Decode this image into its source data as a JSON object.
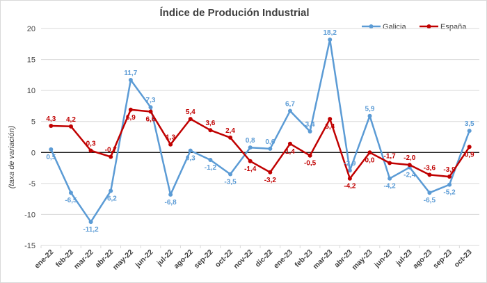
{
  "chart_data": {
    "type": "line",
    "title": "Índice de Produción Industrial",
    "xlabel": "",
    "ylabel": "(taxa de variación)",
    "ylim": [
      -15,
      20
    ],
    "yticks": [
      -15,
      -10,
      -5,
      0,
      5,
      10,
      15,
      20
    ],
    "grid": "horizontal",
    "legend_position": "top-right",
    "categories": [
      "ene-22",
      "feb-22",
      "mar-22",
      "abr-22",
      "may-22",
      "jun-22",
      "jul-22",
      "ago-22",
      "sep-22",
      "oct-22",
      "nov-22",
      "dic-22",
      "ene-23",
      "feb-23",
      "mar-23",
      "abr-23",
      "may-23",
      "jun-23",
      "jul-23",
      "ago-23",
      "sep-23",
      "oct-23"
    ],
    "series": [
      {
        "name": "Galicia",
        "color": "#5b9bd5",
        "values": [
          0.5,
          -6.5,
          -11.2,
          -6.2,
          11.7,
          7.3,
          -6.8,
          0.3,
          -1.2,
          -3.5,
          0.8,
          0.6,
          6.7,
          3.4,
          18.2,
          -2.9,
          5.9,
          -4.2,
          -2.4,
          -6.5,
          -5.2,
          3.5
        ],
        "labels": [
          "0,5",
          "-6,5",
          "-11,2",
          "-6,2",
          "11,7",
          "7,3",
          "-6,8",
          "0,3",
          "-1,2",
          "-3,5",
          "0,8",
          "0,6",
          "6,7",
          "3,4",
          "18,2",
          "-2,9",
          "5,9",
          "-4,2",
          "-2,4",
          "-6,5",
          "-5,2",
          "3,5"
        ]
      },
      {
        "name": "España",
        "color": "#c00000",
        "values": [
          4.3,
          4.2,
          0.3,
          -0.7,
          6.9,
          6.6,
          1.3,
          5.4,
          3.6,
          2.4,
          -1.4,
          -3.2,
          1.4,
          -0.5,
          5.4,
          -4.2,
          0.0,
          -1.7,
          -2.0,
          -3.6,
          -3.9,
          0.9
        ],
        "labels": [
          "4,3",
          "4,2",
          "0,3",
          "-0,7",
          "6,9",
          "6,6",
          "1,3",
          "5,4",
          "3,6",
          "2,4",
          "-1,4",
          "-3,2",
          "1,4",
          "-0,5",
          "5,4",
          "-4,2",
          "0,0",
          "-1,7",
          "-2,0",
          "-3,6",
          "-3,9",
          "0,9"
        ]
      }
    ]
  }
}
